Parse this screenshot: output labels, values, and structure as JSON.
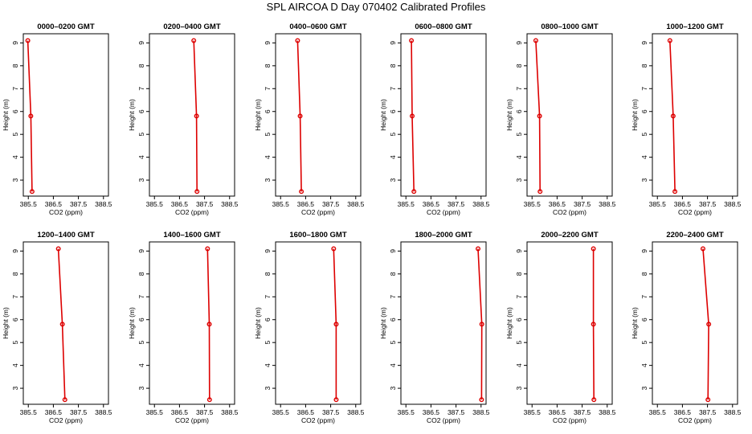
{
  "title": "SPL AIRCOA D  Day 070402  Calibrated Profiles",
  "colors": {
    "profile": "#dd0000",
    "axis": "#000000"
  },
  "chart_data": [
    {
      "type": "line",
      "title": "0000–0200 GMT",
      "xlabel": "CO2 (ppm)",
      "ylabel": "Height (m)",
      "x_ticks": [
        "385.5",
        "386.5",
        "387.5",
        "388.5"
      ],
      "y_ticks": [
        "3",
        "4",
        "5",
        "6",
        "7",
        "8",
        "9"
      ],
      "xlim": [
        385.3,
        388.7
      ],
      "ylim": [
        2.3,
        9.4
      ],
      "series": [
        {
          "x": [
            385.65,
            385.6,
            385.48
          ],
          "y": [
            2.5,
            5.8,
            9.1
          ]
        }
      ]
    },
    {
      "type": "line",
      "title": "0200–0400 GMT",
      "xlabel": "CO2 (ppm)",
      "ylabel": "Height (m)",
      "x_ticks": [
        "385.5",
        "386.5",
        "387.5",
        "388.5"
      ],
      "y_ticks": [
        "3",
        "4",
        "5",
        "6",
        "7",
        "8",
        "9"
      ],
      "xlim": [
        385.3,
        388.7
      ],
      "ylim": [
        2.3,
        9.4
      ],
      "series": [
        {
          "x": [
            387.2,
            387.18,
            387.07
          ],
          "y": [
            2.5,
            5.8,
            9.1
          ]
        }
      ]
    },
    {
      "type": "line",
      "title": "0400–0600 GMT",
      "xlabel": "CO2 (ppm)",
      "ylabel": "Height (m)",
      "x_ticks": [
        "385.5",
        "386.5",
        "387.5",
        "388.5"
      ],
      "y_ticks": [
        "3",
        "4",
        "5",
        "6",
        "7",
        "8",
        "9"
      ],
      "xlim": [
        385.3,
        388.7
      ],
      "ylim": [
        2.3,
        9.4
      ],
      "series": [
        {
          "x": [
            386.33,
            386.28,
            386.18
          ],
          "y": [
            2.5,
            5.8,
            9.1
          ]
        }
      ]
    },
    {
      "type": "line",
      "title": "0600–0800 GMT",
      "xlabel": "CO2 (ppm)",
      "ylabel": "Height (m)",
      "x_ticks": [
        "385.5",
        "386.5",
        "387.5",
        "388.5"
      ],
      "y_ticks": [
        "3",
        "4",
        "5",
        "6",
        "7",
        "8",
        "9"
      ],
      "xlim": [
        385.3,
        388.7
      ],
      "ylim": [
        2.3,
        9.4
      ],
      "series": [
        {
          "x": [
            385.82,
            385.75,
            385.72
          ],
          "y": [
            2.5,
            5.8,
            9.1
          ]
        }
      ]
    },
    {
      "type": "line",
      "title": "0800–1000 GMT",
      "xlabel": "CO2 (ppm)",
      "ylabel": "Height (m)",
      "x_ticks": [
        "385.5",
        "386.5",
        "387.5",
        "388.5"
      ],
      "y_ticks": [
        "3",
        "4",
        "5",
        "6",
        "7",
        "8",
        "9"
      ],
      "xlim": [
        385.3,
        388.7
      ],
      "ylim": [
        2.3,
        9.4
      ],
      "series": [
        {
          "x": [
            385.82,
            385.8,
            385.65
          ],
          "y": [
            2.5,
            5.8,
            9.1
          ]
        }
      ]
    },
    {
      "type": "line",
      "title": "1000–1200 GMT",
      "xlabel": "CO2 (ppm)",
      "ylabel": "Height (m)",
      "x_ticks": [
        "385.5",
        "386.5",
        "387.5",
        "388.5"
      ],
      "y_ticks": [
        "3",
        "4",
        "5",
        "6",
        "7",
        "8",
        "9"
      ],
      "xlim": [
        385.3,
        388.7
      ],
      "ylim": [
        2.3,
        9.4
      ],
      "series": [
        {
          "x": [
            386.2,
            386.13,
            386.0
          ],
          "y": [
            2.5,
            5.8,
            9.1
          ]
        }
      ]
    },
    {
      "type": "line",
      "title": "1200–1400 GMT",
      "xlabel": "CO2 (ppm)",
      "ylabel": "Height (m)",
      "x_ticks": [
        "385.5",
        "386.5",
        "387.5",
        "388.5"
      ],
      "y_ticks": [
        "3",
        "4",
        "5",
        "6",
        "7",
        "8",
        "9"
      ],
      "xlim": [
        385.3,
        388.7
      ],
      "ylim": [
        2.3,
        9.4
      ],
      "series": [
        {
          "x": [
            386.96,
            386.86,
            386.7
          ],
          "y": [
            2.5,
            5.8,
            9.1
          ]
        }
      ]
    },
    {
      "type": "line",
      "title": "1400–1600 GMT",
      "xlabel": "CO2 (ppm)",
      "ylabel": "Height (m)",
      "x_ticks": [
        "385.5",
        "386.5",
        "387.5",
        "388.5"
      ],
      "y_ticks": [
        "3",
        "4",
        "5",
        "6",
        "7",
        "8",
        "9"
      ],
      "xlim": [
        385.3,
        388.7
      ],
      "ylim": [
        2.3,
        9.4
      ],
      "series": [
        {
          "x": [
            387.7,
            387.69,
            387.62
          ],
          "y": [
            2.5,
            5.8,
            9.1
          ]
        }
      ]
    },
    {
      "type": "line",
      "title": "1600–1800 GMT",
      "xlabel": "CO2 (ppm)",
      "ylabel": "Height (m)",
      "x_ticks": [
        "385.5",
        "386.5",
        "387.5",
        "388.5"
      ],
      "y_ticks": [
        "3",
        "4",
        "5",
        "6",
        "7",
        "8",
        "9"
      ],
      "xlim": [
        385.3,
        388.7
      ],
      "ylim": [
        2.3,
        9.4
      ],
      "series": [
        {
          "x": [
            387.72,
            387.72,
            387.62
          ],
          "y": [
            2.5,
            5.8,
            9.1
          ]
        }
      ]
    },
    {
      "type": "line",
      "title": "1800–2000 GMT",
      "xlabel": "CO2 (ppm)",
      "ylabel": "Height (m)",
      "x_ticks": [
        "385.5",
        "386.5",
        "387.5",
        "388.5"
      ],
      "y_ticks": [
        "3",
        "4",
        "5",
        "6",
        "7",
        "8",
        "9"
      ],
      "xlim": [
        385.3,
        388.7
      ],
      "ylim": [
        2.3,
        9.4
      ],
      "series": [
        {
          "x": [
            388.52,
            388.53,
            388.38
          ],
          "y": [
            2.5,
            5.8,
            9.1
          ]
        }
      ]
    },
    {
      "type": "line",
      "title": "2000–2200 GMT",
      "xlabel": "CO2 (ppm)",
      "ylabel": "Height (m)",
      "x_ticks": [
        "385.5",
        "386.5",
        "387.5",
        "388.5"
      ],
      "y_ticks": [
        "3",
        "4",
        "5",
        "6",
        "7",
        "8",
        "9"
      ],
      "xlim": [
        385.3,
        388.7
      ],
      "ylim": [
        2.3,
        9.4
      ],
      "series": [
        {
          "x": [
            387.97,
            387.95,
            387.95
          ],
          "y": [
            2.5,
            5.8,
            9.1
          ]
        }
      ]
    },
    {
      "type": "line",
      "title": "2200–2400 GMT",
      "xlabel": "CO2 (ppm)",
      "ylabel": "Height (m)",
      "x_ticks": [
        "385.5",
        "386.5",
        "387.5",
        "388.5"
      ],
      "y_ticks": [
        "3",
        "4",
        "5",
        "6",
        "7",
        "8",
        "9"
      ],
      "xlim": [
        385.3,
        388.7
      ],
      "ylim": [
        2.3,
        9.4
      ],
      "series": [
        {
          "x": [
            387.52,
            387.55,
            387.32
          ],
          "y": [
            2.5,
            5.8,
            9.1
          ]
        }
      ]
    }
  ]
}
